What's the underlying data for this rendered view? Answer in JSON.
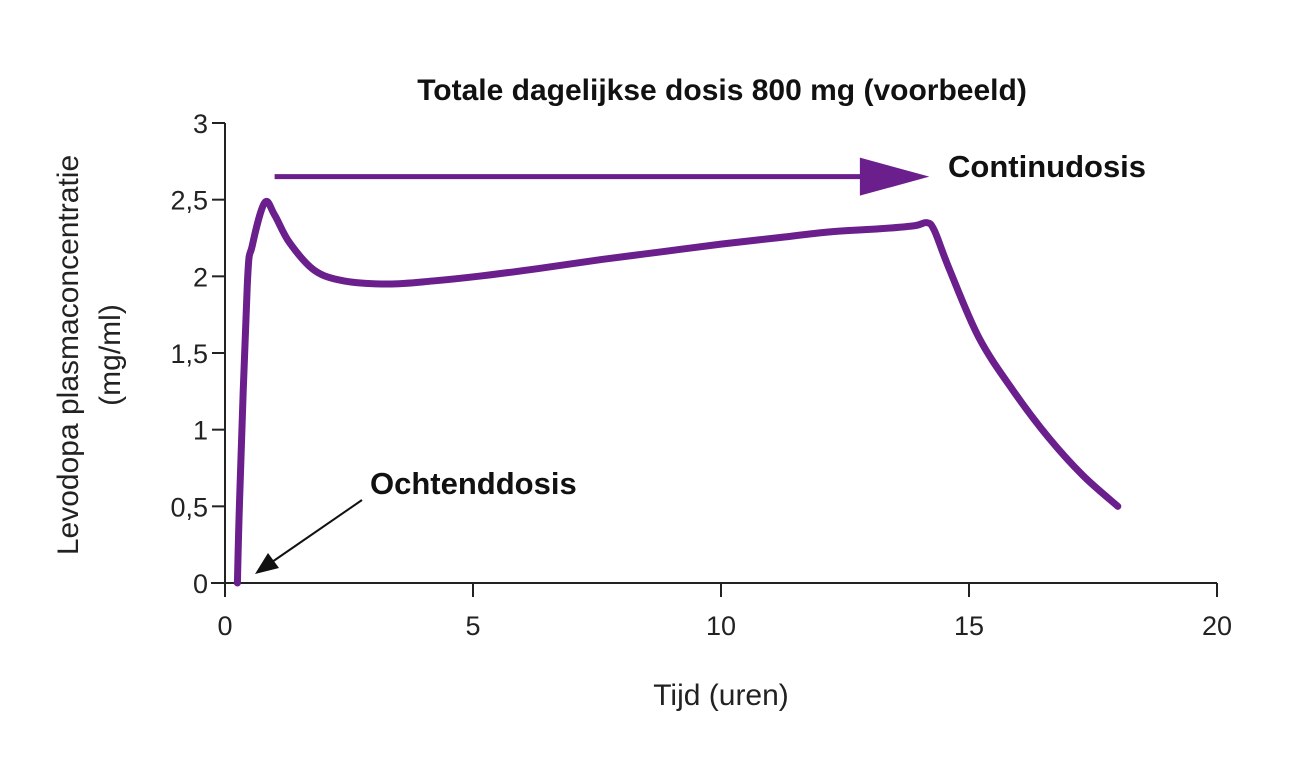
{
  "chart_data": {
    "type": "line",
    "title": "Totale dagelijkse dosis 800 mg (voorbeeld)",
    "xlabel": "Tijd (uren)",
    "ylabel_lines": [
      "Levodopa plasmaconcentratie",
      "(mg/ml)"
    ],
    "xlim": [
      0,
      20
    ],
    "ylim": [
      0,
      3
    ],
    "x_ticks": [
      0,
      5,
      10,
      15,
      20
    ],
    "x_tick_labels": [
      "0",
      "5",
      "10",
      "15",
      "20"
    ],
    "y_ticks": [
      0,
      0.5,
      1,
      1.5,
      2,
      2.5,
      3
    ],
    "y_tick_labels": [
      "0",
      "0,5",
      "1",
      "1,5",
      "2",
      "2,5",
      "3"
    ],
    "grid": false,
    "series": [
      {
        "name": "Levodopa plasmaconcentratie",
        "color": "#6a1f8c",
        "x": [
          0.25,
          0.3,
          0.45,
          0.55,
          0.8,
          1.0,
          1.3,
          1.8,
          2.4,
          3.3,
          4.2,
          5.1,
          6.3,
          7.6,
          8.8,
          10.0,
          11.1,
          12.2,
          13.2,
          13.9,
          14.15,
          14.3,
          14.6,
          15.2,
          15.9,
          16.6,
          17.3,
          18.0
        ],
        "y": [
          0.0,
          0.6,
          1.95,
          2.2,
          2.48,
          2.4,
          2.22,
          2.04,
          1.97,
          1.95,
          1.97,
          2.0,
          2.05,
          2.11,
          2.16,
          2.21,
          2.25,
          2.29,
          2.31,
          2.33,
          2.35,
          2.3,
          2.05,
          1.6,
          1.25,
          0.95,
          0.7,
          0.5
        ]
      }
    ],
    "annotations": [
      {
        "text": "Continudosis",
        "arrow": "horizontal arrow from x=1 to x=14.5 at y=2.65",
        "color": "#6a1f8c"
      },
      {
        "text": "Ochtenddosis",
        "arrow": "points to curve start at x=0.3, y=0.05",
        "color": "#111111"
      }
    ]
  }
}
